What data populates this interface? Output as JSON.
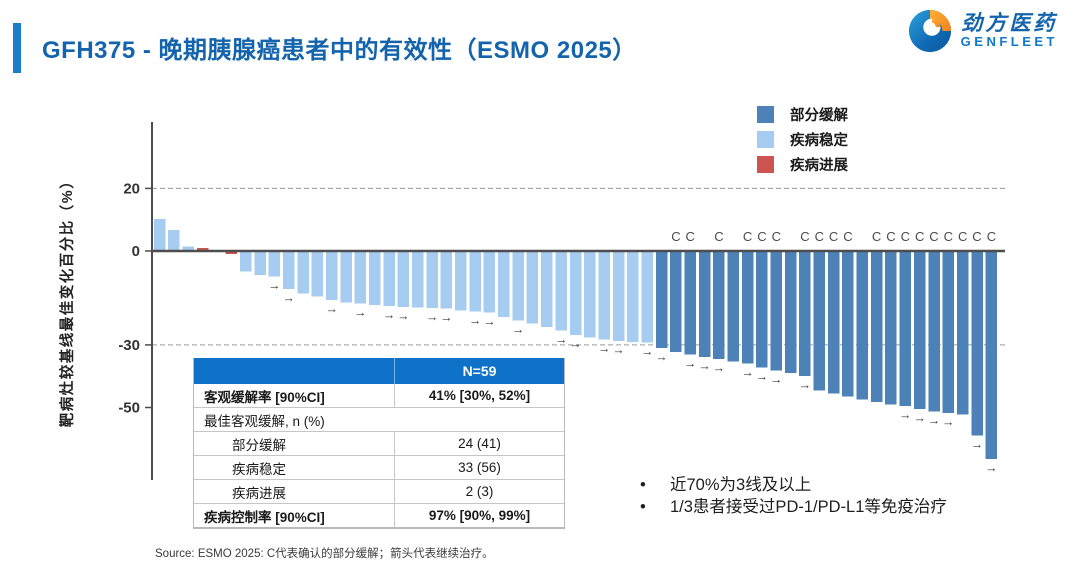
{
  "header": {
    "title": "GFH375 - 晚期胰腺癌患者中的有效性（ESMO 2025）",
    "logo": {
      "name_cn": "劲方医药",
      "name_en": "GENFLEET"
    }
  },
  "legend": {
    "items": [
      {
        "key": "PR",
        "label": "部分缓解",
        "color": "#4d82b8"
      },
      {
        "key": "SD",
        "label": "疾病稳定",
        "color": "#a6ccf2"
      },
      {
        "key": "PD",
        "label": "疾病进展",
        "color": "#cd554f"
      }
    ]
  },
  "chart_data": {
    "type": "bar",
    "subtype": "waterfall",
    "title": "",
    "xlabel": "",
    "ylabel": "靶病灶较基线最佳变化百分比（%）",
    "yticks": [
      20,
      0,
      -30,
      -50
    ],
    "ylim": [
      -70,
      30
    ],
    "dashed_gridlines_at": [
      20,
      -30
    ],
    "n_patients": 59,
    "annotations": {
      "C": "确认的部分缓解",
      "arrow": "继续治疗"
    },
    "colors": {
      "PR": "#4d82b8",
      "SD": "#a6ccf2",
      "PD": "#cd554f"
    },
    "patients": [
      {
        "v": 10.2,
        "s": "SD",
        "c": false,
        "a": false
      },
      {
        "v": 6.7,
        "s": "SD",
        "c": false,
        "a": false
      },
      {
        "v": 1.4,
        "s": "SD",
        "c": false,
        "a": false
      },
      {
        "v": 0.9,
        "s": "PD",
        "c": false,
        "a": false
      },
      {
        "v": 0,
        "s": "SD",
        "c": false,
        "a": false
      },
      {
        "v": -1,
        "s": "PD",
        "c": false,
        "a": false
      },
      {
        "v": -6.6,
        "s": "SD",
        "c": false,
        "a": false
      },
      {
        "v": -7.6,
        "s": "SD",
        "c": false,
        "a": false
      },
      {
        "v": -8.2,
        "s": "SD",
        "c": false,
        "a": true
      },
      {
        "v": -12.2,
        "s": "SD",
        "c": false,
        "a": true
      },
      {
        "v": -13.5,
        "s": "SD",
        "c": false,
        "a": false
      },
      {
        "v": -14.6,
        "s": "SD",
        "c": false,
        "a": false
      },
      {
        "v": -15.6,
        "s": "SD",
        "c": false,
        "a": true
      },
      {
        "v": -16.4,
        "s": "SD",
        "c": false,
        "a": false
      },
      {
        "v": -16.7,
        "s": "SD",
        "c": false,
        "a": true
      },
      {
        "v": -17.3,
        "s": "SD",
        "c": false,
        "a": false
      },
      {
        "v": -17.6,
        "s": "SD",
        "c": false,
        "a": true
      },
      {
        "v": -17.9,
        "s": "SD",
        "c": false,
        "a": true
      },
      {
        "v": -18.1,
        "s": "SD",
        "c": false,
        "a": false
      },
      {
        "v": -18.2,
        "s": "SD",
        "c": false,
        "a": true
      },
      {
        "v": -18.4,
        "s": "SD",
        "c": false,
        "a": true
      },
      {
        "v": -19,
        "s": "SD",
        "c": false,
        "a": false
      },
      {
        "v": -19.3,
        "s": "SD",
        "c": false,
        "a": true
      },
      {
        "v": -19.6,
        "s": "SD",
        "c": false,
        "a": true
      },
      {
        "v": -21.1,
        "s": "SD",
        "c": false,
        "a": false
      },
      {
        "v": -22.2,
        "s": "SD",
        "c": false,
        "a": true
      },
      {
        "v": -23.2,
        "s": "SD",
        "c": false,
        "a": false
      },
      {
        "v": -24.3,
        "s": "SD",
        "c": false,
        "a": false
      },
      {
        "v": -25.4,
        "s": "SD",
        "c": false,
        "a": true
      },
      {
        "v": -26.8,
        "s": "SD",
        "c": false,
        "a": true
      },
      {
        "v": -27.7,
        "s": "SD",
        "c": false,
        "a": false
      },
      {
        "v": -28.3,
        "s": "SD",
        "c": false,
        "a": true
      },
      {
        "v": -28.7,
        "s": "SD",
        "c": false,
        "a": true
      },
      {
        "v": -29,
        "s": "SD",
        "c": false,
        "a": false
      },
      {
        "v": -29.3,
        "s": "SD",
        "c": false,
        "a": true
      },
      {
        "v": -31,
        "s": "PR",
        "c": false,
        "a": true
      },
      {
        "v": -32.3,
        "s": "PR",
        "c": true,
        "a": false
      },
      {
        "v": -33.1,
        "s": "PR",
        "c": true,
        "a": true
      },
      {
        "v": -33.8,
        "s": "PR",
        "c": false,
        "a": true
      },
      {
        "v": -34.5,
        "s": "PR",
        "c": true,
        "a": true
      },
      {
        "v": -35.3,
        "s": "PR",
        "c": false,
        "a": false
      },
      {
        "v": -36,
        "s": "PR",
        "c": true,
        "a": true
      },
      {
        "v": -37.3,
        "s": "PR",
        "c": true,
        "a": true
      },
      {
        "v": -38.2,
        "s": "PR",
        "c": true,
        "a": true
      },
      {
        "v": -39,
        "s": "PR",
        "c": false,
        "a": false
      },
      {
        "v": -40,
        "s": "PR",
        "c": true,
        "a": true
      },
      {
        "v": -44.5,
        "s": "PR",
        "c": true,
        "a": false
      },
      {
        "v": -45.5,
        "s": "PR",
        "c": true,
        "a": false
      },
      {
        "v": -46.5,
        "s": "PR",
        "c": true,
        "a": false
      },
      {
        "v": -47.5,
        "s": "PR",
        "c": false,
        "a": false
      },
      {
        "v": -48.3,
        "s": "PR",
        "c": true,
        "a": false
      },
      {
        "v": -49,
        "s": "PR",
        "c": true,
        "a": false
      },
      {
        "v": -49.6,
        "s": "PR",
        "c": true,
        "a": true
      },
      {
        "v": -50.5,
        "s": "PR",
        "c": true,
        "a": true
      },
      {
        "v": -51.2,
        "s": "PR",
        "c": true,
        "a": true
      },
      {
        "v": -51.8,
        "s": "PR",
        "c": true,
        "a": true
      },
      {
        "v": -52.3,
        "s": "PR",
        "c": true,
        "a": false
      },
      {
        "v": -59,
        "s": "PR",
        "c": true,
        "a": true
      },
      {
        "v": -66.5,
        "s": "PR",
        "c": true,
        "a": true
      }
    ]
  },
  "table": {
    "header": {
      "label": "",
      "value": "N=59"
    },
    "rows": [
      {
        "label": "客观缓解率 [90%CI]",
        "value": "41% [30%, 52%]",
        "bold": true,
        "indent": false,
        "span": false
      },
      {
        "label": "最佳客观缓解, n (%)",
        "value": "",
        "bold": false,
        "indent": false,
        "span": true
      },
      {
        "label": "部分缓解",
        "value": "24 (41)",
        "bold": false,
        "indent": true,
        "span": false
      },
      {
        "label": "疾病稳定",
        "value": "33 (56)",
        "bold": false,
        "indent": true,
        "span": false
      },
      {
        "label": "疾病进展",
        "value": "2 (3)",
        "bold": false,
        "indent": true,
        "span": false
      },
      {
        "label": "疾病控制率 [90%CI]",
        "value": "97% [90%, 99%]",
        "bold": true,
        "indent": false,
        "span": false
      }
    ]
  },
  "insights": {
    "bullets": [
      "近70%为3线及以上",
      "1/3患者接受过PD-1/PD-L1等免疫治疗"
    ]
  },
  "source": "Source: ESMO 2025: C代表确认的部分缓解；箭头代表继续治疗。"
}
